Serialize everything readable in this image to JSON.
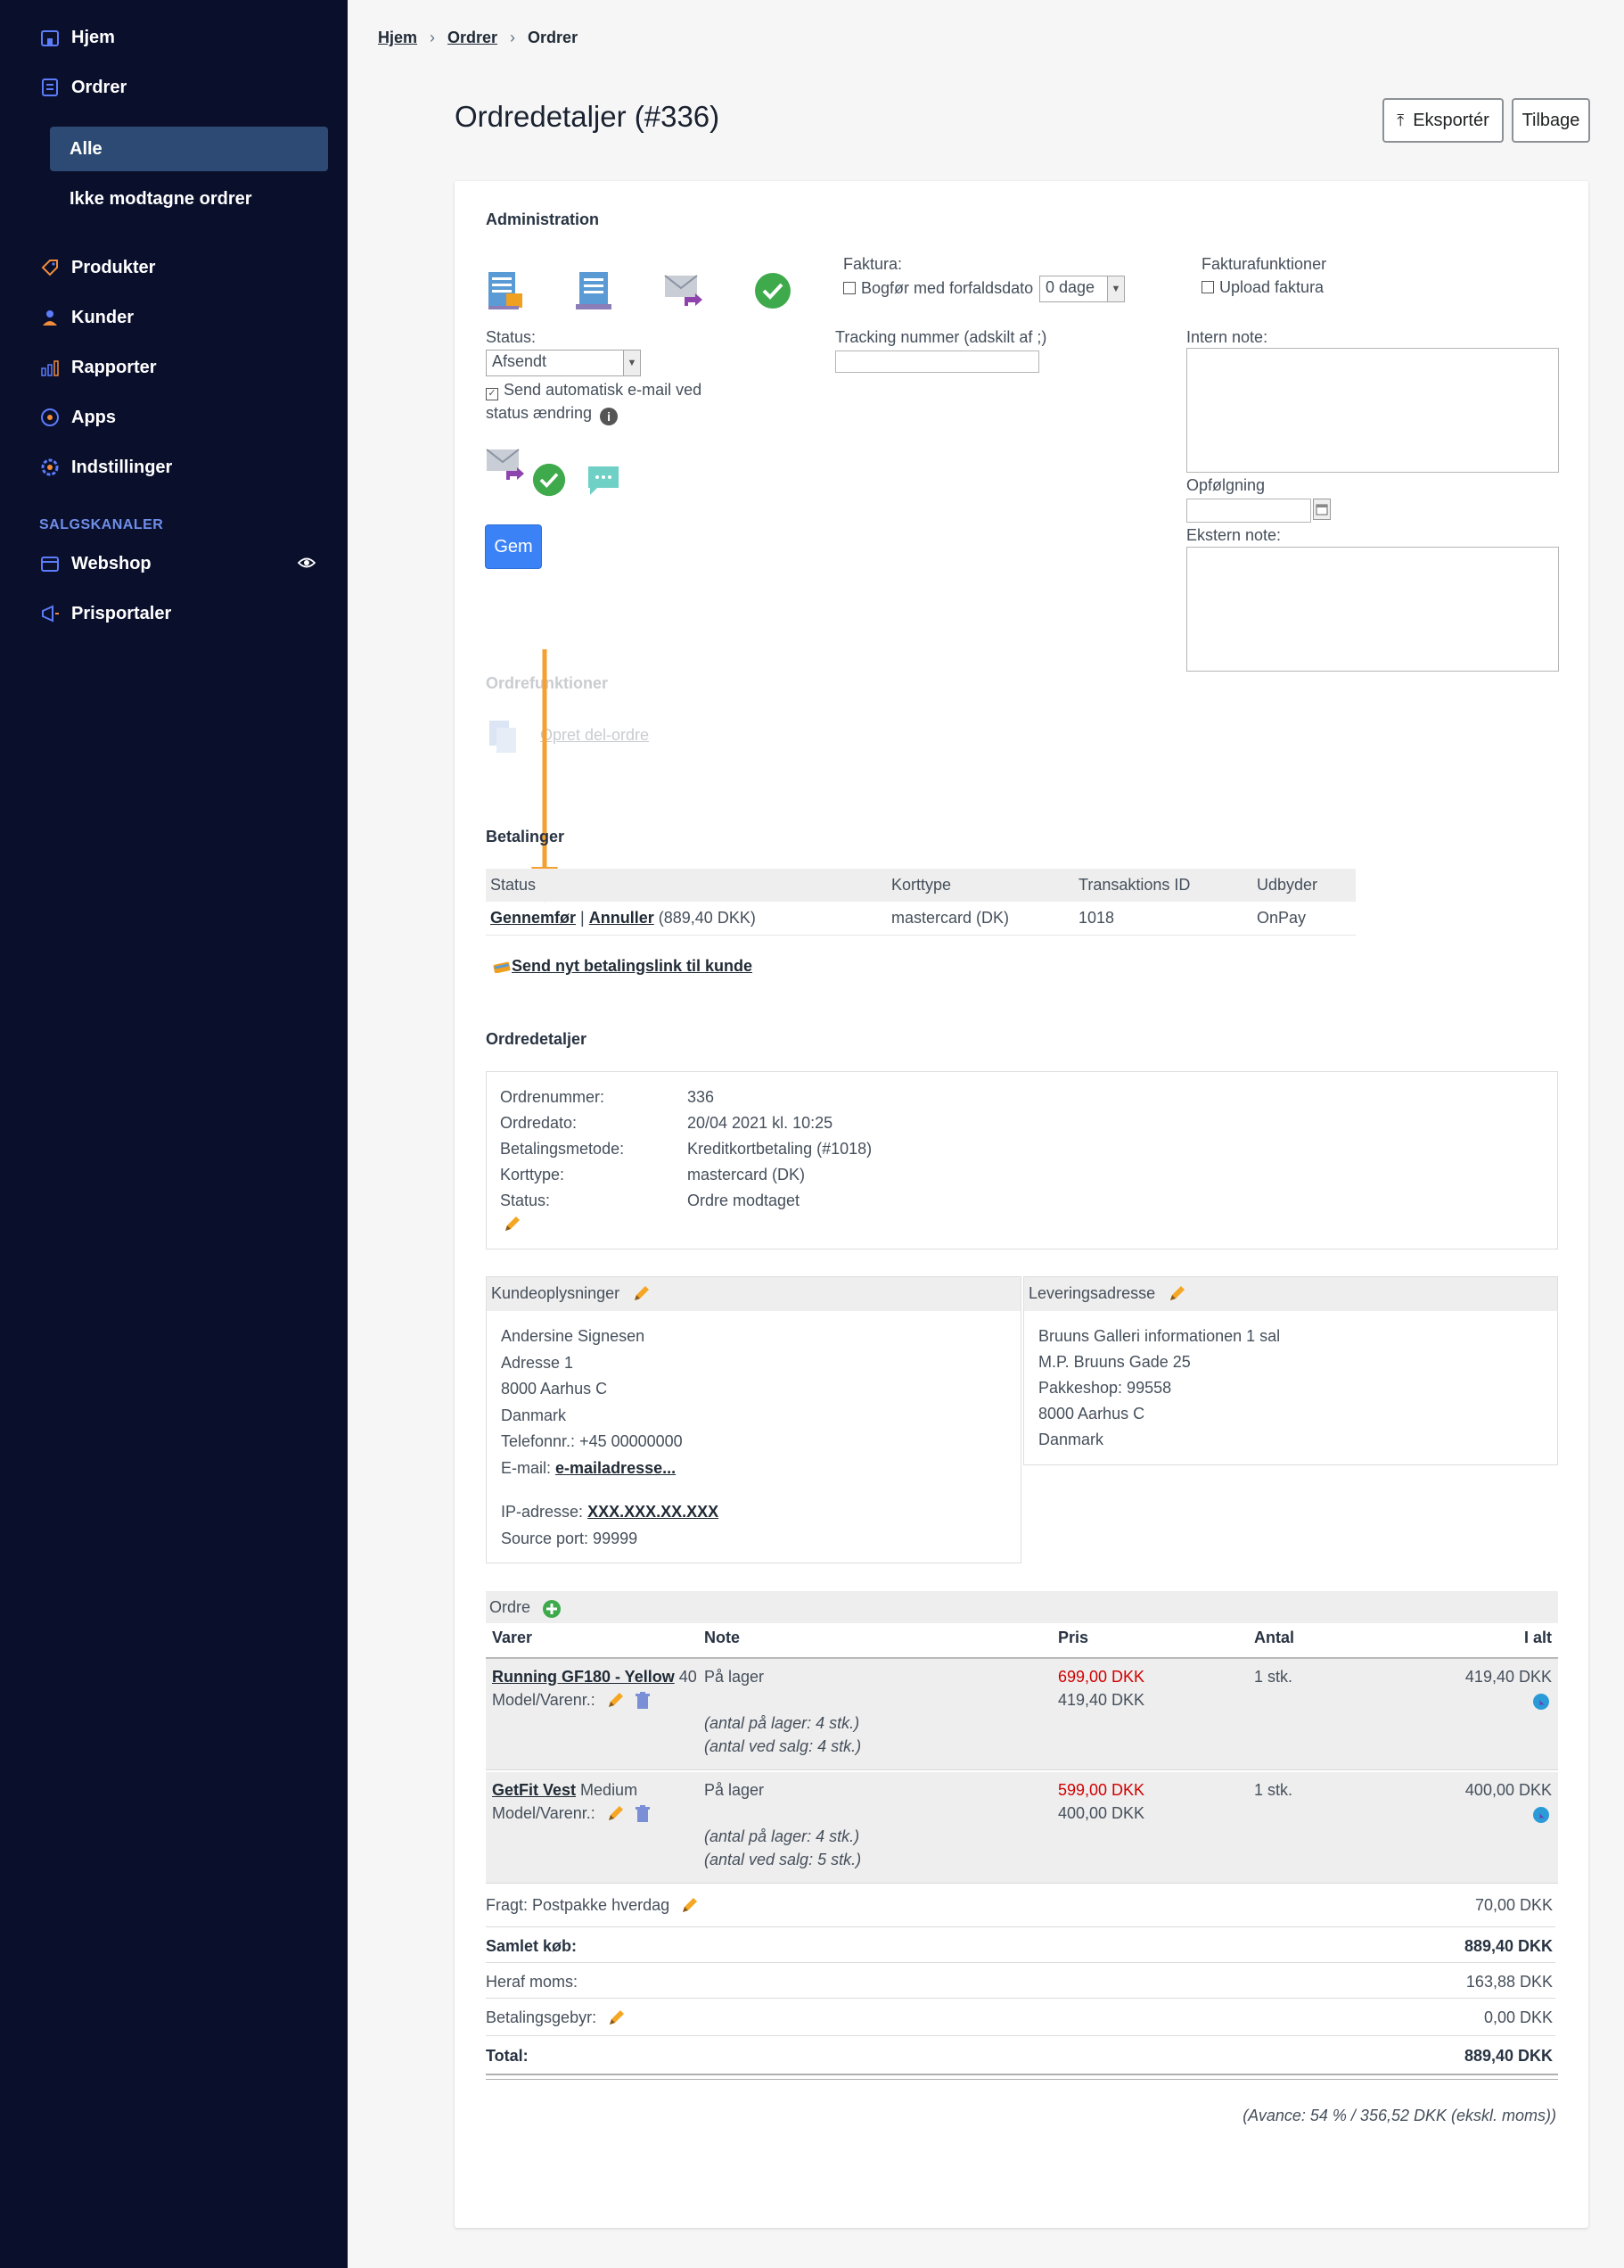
{
  "sidebar": {
    "items": [
      {
        "label": "Hjem",
        "icon": "home-icon"
      },
      {
        "label": "Ordrer",
        "icon": "orders-icon"
      },
      {
        "label": "Produkter",
        "icon": "tag-icon"
      },
      {
        "label": "Kunder",
        "icon": "person-icon"
      },
      {
        "label": "Rapporter",
        "icon": "bar-chart-icon"
      },
      {
        "label": "Apps",
        "icon": "apps-icon"
      },
      {
        "label": "Indstillinger",
        "icon": "gear-icon"
      }
    ],
    "sub_items": [
      {
        "label": "Alle",
        "active": true
      },
      {
        "label": "Ikke modtagne ordrer",
        "active": false
      }
    ],
    "section_label": "SALGSKANALER",
    "channels": [
      {
        "label": "Webshop",
        "icon": "store-icon"
      },
      {
        "label": "Prisportaler",
        "icon": "megaphone-icon"
      }
    ]
  },
  "breadcrumb": [
    "Hjem",
    "Ordrer",
    "Ordrer"
  ],
  "header": {
    "title": "Ordredetaljer (#336)",
    "export_label": "Eksportér",
    "back_label": "Tilbage"
  },
  "admin": {
    "title": "Administration",
    "status_label": "Status:",
    "status_value": "Afsendt",
    "auto_email_label": "Send automatisk e-mail ved",
    "auto_email_label2": "status ændring",
    "save_label": "Gem",
    "faktura_label": "Faktura:",
    "bogfor_label": "Bogfør med forfaldsdato",
    "due_value": "0 dage",
    "tracking_label": "Tracking nummer (adskilt af ;)",
    "fakturafunktioner_label": "Fakturafunktioner",
    "upload_label": "Upload faktura",
    "intern_note_label": "Intern note:",
    "opfolgning_label": "Opfølgning",
    "ekstern_note_label": "Ekstern note:"
  },
  "ordrefunktioner": {
    "title": "Ordrefunktioner",
    "link": "Opret del-ordre"
  },
  "payments": {
    "title": "Betalinger",
    "columns": [
      "Status",
      "Korttype",
      "Transaktions ID",
      "Udbyder"
    ],
    "row": {
      "capture": "Gennemfør",
      "sep": "|",
      "cancel": "Annuller",
      "amount": "(889,40 DKK)",
      "card": "mastercard (DK)",
      "tid": "1018",
      "provider": "OnPay"
    },
    "send_link": "Send nyt betalingslink til kunde"
  },
  "details": {
    "title": "Ordredetaljer",
    "rows": [
      {
        "k": "Ordrenummer:",
        "v": "336"
      },
      {
        "k": "Ordredato:",
        "v": "20/04 2021 kl. 10:25"
      },
      {
        "k": "Betalingsmetode:",
        "v": "Kreditkortbetaling (#1018)"
      },
      {
        "k": "Korttype:",
        "v": "mastercard (DK)"
      },
      {
        "k": "Status:",
        "v": "Ordre modtaget"
      }
    ]
  },
  "customer": {
    "title": "Kundeoplysninger",
    "lines": [
      "Andersine Signesen",
      "Adresse 1",
      "8000 Aarhus C",
      "Danmark",
      "Telefonnr.: +45 00000000"
    ],
    "email_label": "E-mail:",
    "email_value": "e-mailadresse...",
    "ip_label": "IP-adresse:",
    "ip_value": "XXX.XXX.XX.XXX",
    "source_port": "Source port: 99999"
  },
  "delivery": {
    "title": "Leveringsadresse",
    "lines": [
      "Bruuns Galleri informationen 1 sal",
      "M.P. Bruuns Gade 25",
      "Pakkeshop: 99558",
      "8000 Aarhus C",
      "Danmark"
    ]
  },
  "order": {
    "title": "Ordre",
    "columns": {
      "item": "Varer",
      "note": "Note",
      "price": "Pris",
      "qty": "Antal",
      "total": "I alt"
    },
    "model_label": "Model/Varenr.:",
    "lines": [
      {
        "name": "Running GF180 - Yellow",
        "variant": "40",
        "note": "På lager",
        "stock1": "(antal på lager: 4 stk.)",
        "stock2": "(antal ved salg: 4 stk.)",
        "price_old": "699,00 DKK",
        "price": "419,40 DKK",
        "qty": "1 stk.",
        "total": "419,40 DKK"
      },
      {
        "name": "GetFit Vest",
        "variant": "Medium",
        "note": "På lager",
        "stock1": "(antal på lager: 4 stk.)",
        "stock2": "(antal ved salg: 5 stk.)",
        "price_old": "599,00 DKK",
        "price": "400,00 DKK",
        "qty": "1 stk.",
        "total": "400,00 DKK"
      }
    ],
    "freight_label": "Fragt: Postpakke hverdag",
    "freight_value": "70,00 DKK",
    "sum_label": "Samlet køb:",
    "sum_value": "889,40 DKK",
    "vat_label": "Heraf moms:",
    "vat_value": "163,88 DKK",
    "fee_label": "Betalingsgebyr:",
    "fee_value": "0,00 DKK",
    "total_label": "Total:",
    "total_value": "889,40 DKK",
    "margin": "(Avance: 54 % / 356,52 DKK (ekskl. moms))"
  },
  "colors": {
    "sidebar_bg": "#0a0f2c",
    "active_bg": "#2c4a73",
    "accent": "#3b82f6",
    "arrow": "#f5a032",
    "sale_price": "#d00000"
  }
}
